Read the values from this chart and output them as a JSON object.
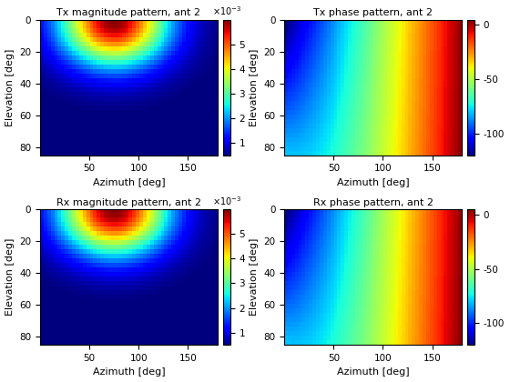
{
  "titles": [
    "Tx magnitude pattern, ant 2",
    "Tx phase pattern, ant 2",
    "Rx magnitude pattern, ant 2",
    "Rx phase pattern, ant 2"
  ],
  "xlabel": "Azimuth [deg]",
  "ylabel": "Elevation [deg]",
  "az_ticks": [
    50,
    100,
    150
  ],
  "el_ticks": [
    0,
    20,
    40,
    60,
    80
  ],
  "mag_vmin": 0.0005,
  "mag_vmax": 0.006,
  "phase_vmin": -120,
  "phase_vmax": 5,
  "mag_colorbar_ticks": [
    0.001,
    0.002,
    0.003,
    0.004,
    0.005
  ],
  "mag_colorbar_labels": [
    "1",
    "2",
    "3",
    "4",
    "5"
  ],
  "phase_colorbar_ticks": [
    0,
    -50,
    -100
  ],
  "phase_colorbar_labels": [
    "0",
    "-50",
    "-100"
  ],
  "figsize": [
    5.6,
    4.2
  ],
  "dpi": 100,
  "n_az": 50,
  "n_el": 30,
  "az_min": 0,
  "az_max": 180,
  "el_min": 0,
  "el_max": 85
}
